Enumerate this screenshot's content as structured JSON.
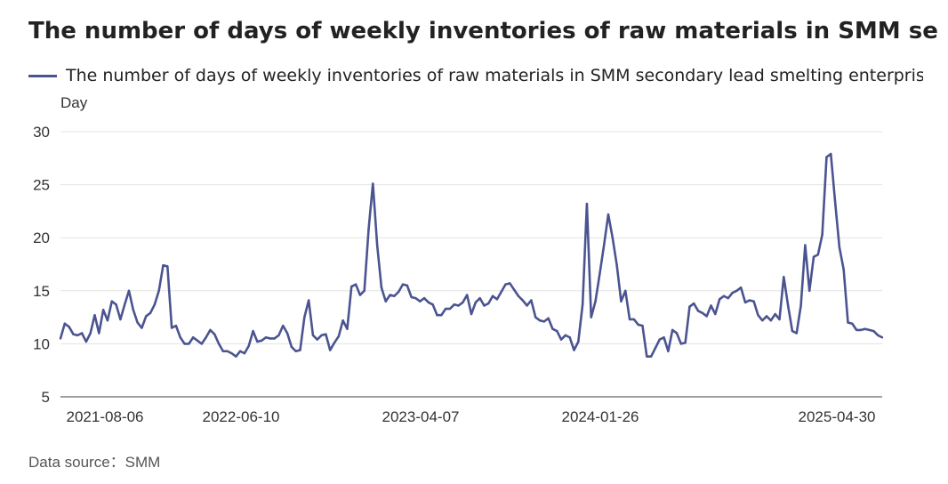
{
  "title": "The number of days of weekly inventories of raw materials in SMM secondary lead smelting enterprises",
  "source": "Data source：SMM",
  "chart_data": {
    "type": "line",
    "ylabel": "Day",
    "ylim": [
      5,
      30
    ],
    "yticks": [
      5,
      10,
      15,
      20,
      25,
      30
    ],
    "xtick_labels": [
      "2021-08-06",
      "2022-06-10",
      "2023-04-07",
      "2024-01-26",
      "2025-04-30"
    ],
    "grid": true,
    "legend": "top-left",
    "series": [
      {
        "name": "The number of days of weekly inventories of raw materials in SMM secondary lead smelting enterprises",
        "color": "#4b5490",
        "values": [
          10.5,
          11.9,
          11.6,
          10.9,
          10.8,
          11.0,
          10.2,
          11.0,
          12.7,
          11.0,
          13.2,
          12.2,
          14.0,
          13.7,
          12.3,
          13.7,
          15.0,
          13.2,
          12.0,
          11.5,
          12.6,
          12.9,
          13.7,
          15.0,
          17.4,
          17.3,
          11.5,
          11.7,
          10.6,
          10.0,
          10.0,
          10.6,
          10.3,
          10.0,
          10.6,
          11.3,
          10.9,
          10.0,
          9.3,
          9.3,
          9.1,
          8.8,
          9.3,
          9.1,
          9.8,
          11.2,
          10.2,
          10.3,
          10.6,
          10.5,
          10.5,
          10.8,
          11.7,
          11.0,
          9.7,
          9.3,
          9.4,
          12.5,
          14.1,
          10.8,
          10.4,
          10.8,
          10.9,
          9.4,
          10.1,
          10.7,
          12.2,
          11.4,
          15.4,
          15.6,
          14.6,
          15.0,
          20.8,
          25.1,
          19.3,
          15.3,
          14.0,
          14.6,
          14.5,
          14.9,
          15.6,
          15.5,
          14.4,
          14.3,
          14.0,
          14.3,
          13.9,
          13.7,
          12.7,
          12.7,
          13.3,
          13.3,
          13.7,
          13.6,
          13.9,
          14.6,
          12.8,
          13.9,
          14.3,
          13.6,
          13.8,
          14.5,
          14.2,
          14.9,
          15.6,
          15.7,
          15.1,
          14.5,
          14.1,
          13.6,
          14.1,
          12.5,
          12.2,
          12.1,
          12.4,
          11.4,
          11.2,
          10.4,
          10.8,
          10.6,
          9.4,
          10.2,
          13.7,
          23.2,
          12.5,
          14.0,
          16.6,
          19.3,
          22.2,
          20.0,
          17.4,
          14.0,
          15.0,
          12.3,
          12.3,
          11.8,
          11.7,
          8.8,
          8.8,
          9.6,
          10.4,
          10.6,
          9.3,
          11.3,
          11.0,
          10.0,
          10.1,
          13.5,
          13.8,
          13.1,
          12.9,
          12.6,
          13.6,
          12.8,
          14.2,
          14.5,
          14.3,
          14.8,
          15.0,
          15.3,
          13.9,
          14.1,
          14.0,
          12.7,
          12.2,
          12.6,
          12.2,
          12.8,
          12.3,
          16.3,
          13.6,
          11.2,
          11.0,
          13.6,
          19.3,
          15.0,
          18.2,
          18.4,
          20.3,
          27.6,
          27.9,
          23.4,
          19.1,
          17.0,
          12.0,
          11.9,
          11.3,
          11.3,
          11.4,
          11.3,
          11.2,
          10.8,
          10.6
        ]
      }
    ]
  }
}
